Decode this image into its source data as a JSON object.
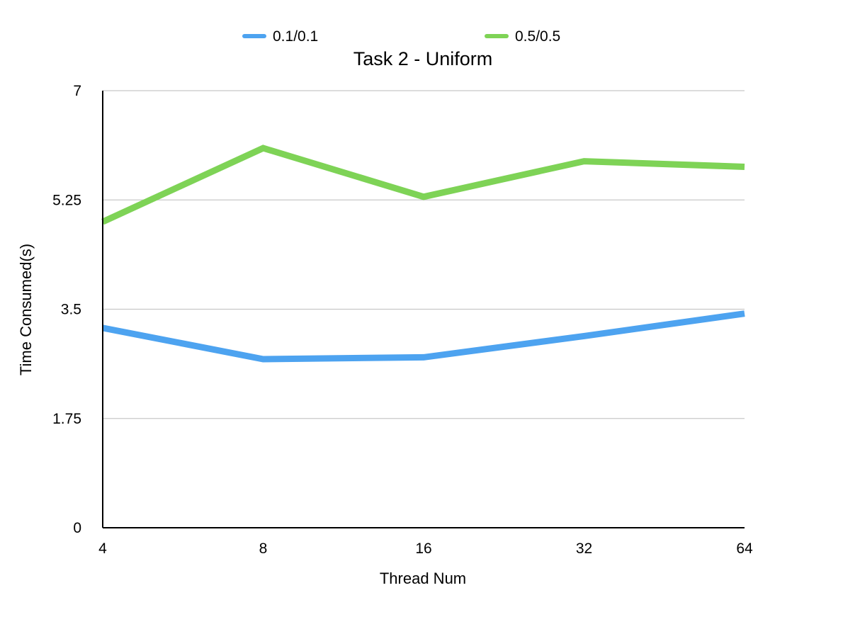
{
  "chart_data": {
    "type": "line",
    "title": "Task 2 - Uniform",
    "xlabel": "Thread Num",
    "ylabel": "Time Consumed(s)",
    "categories": [
      "4",
      "8",
      "16",
      "32",
      "64"
    ],
    "yticks": [
      "0",
      "1.75",
      "3.5",
      "5.25",
      "7"
    ],
    "ylim": [
      0,
      7
    ],
    "grid": true,
    "legend_position": "top",
    "series": [
      {
        "name": "0.1/0.1",
        "color": "#4da3f0",
        "values": [
          3.2,
          2.7,
          2.73,
          3.07,
          3.43
        ]
      },
      {
        "name": "0.5/0.5",
        "color": "#7ed356",
        "values": [
          4.9,
          6.08,
          5.3,
          5.87,
          5.78
        ]
      }
    ]
  }
}
